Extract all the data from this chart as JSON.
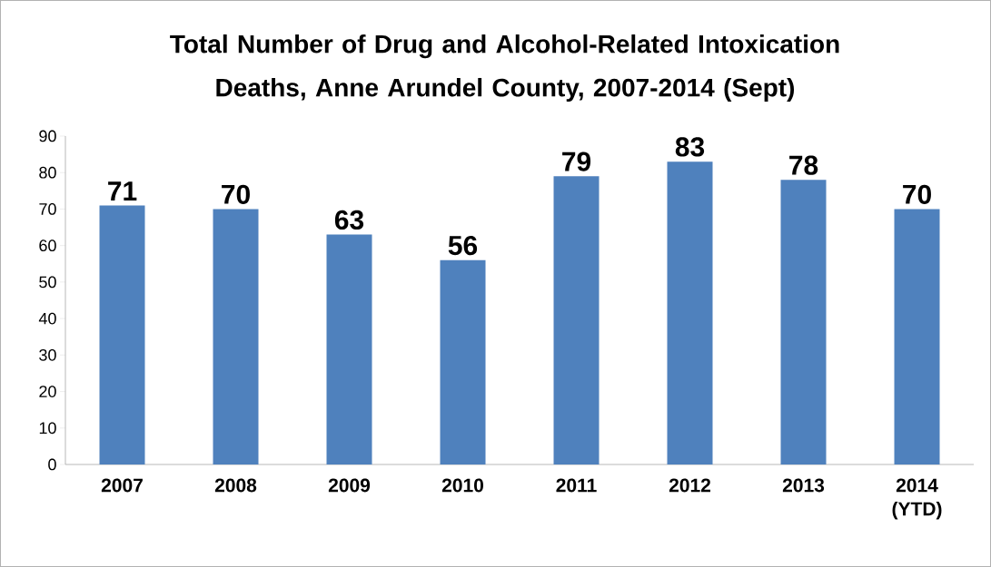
{
  "chart_data": {
    "type": "bar",
    "title": "Total Number of Drug and Alcohol-Related Intoxication Deaths, Anne Arundel County, 2007-2014 (Sept)",
    "categories": [
      "2007",
      "2008",
      "2009",
      "2010",
      "2011",
      "2012",
      "2013",
      "2014 (YTD)"
    ],
    "values": [
      71,
      70,
      63,
      56,
      79,
      83,
      78,
      70
    ],
    "color": "#4f81bd",
    "ylim": [
      0,
      90
    ],
    "yticks": [
      0,
      10,
      20,
      30,
      40,
      50,
      60,
      70,
      80,
      90
    ],
    "data_labels": true,
    "grid": false
  }
}
